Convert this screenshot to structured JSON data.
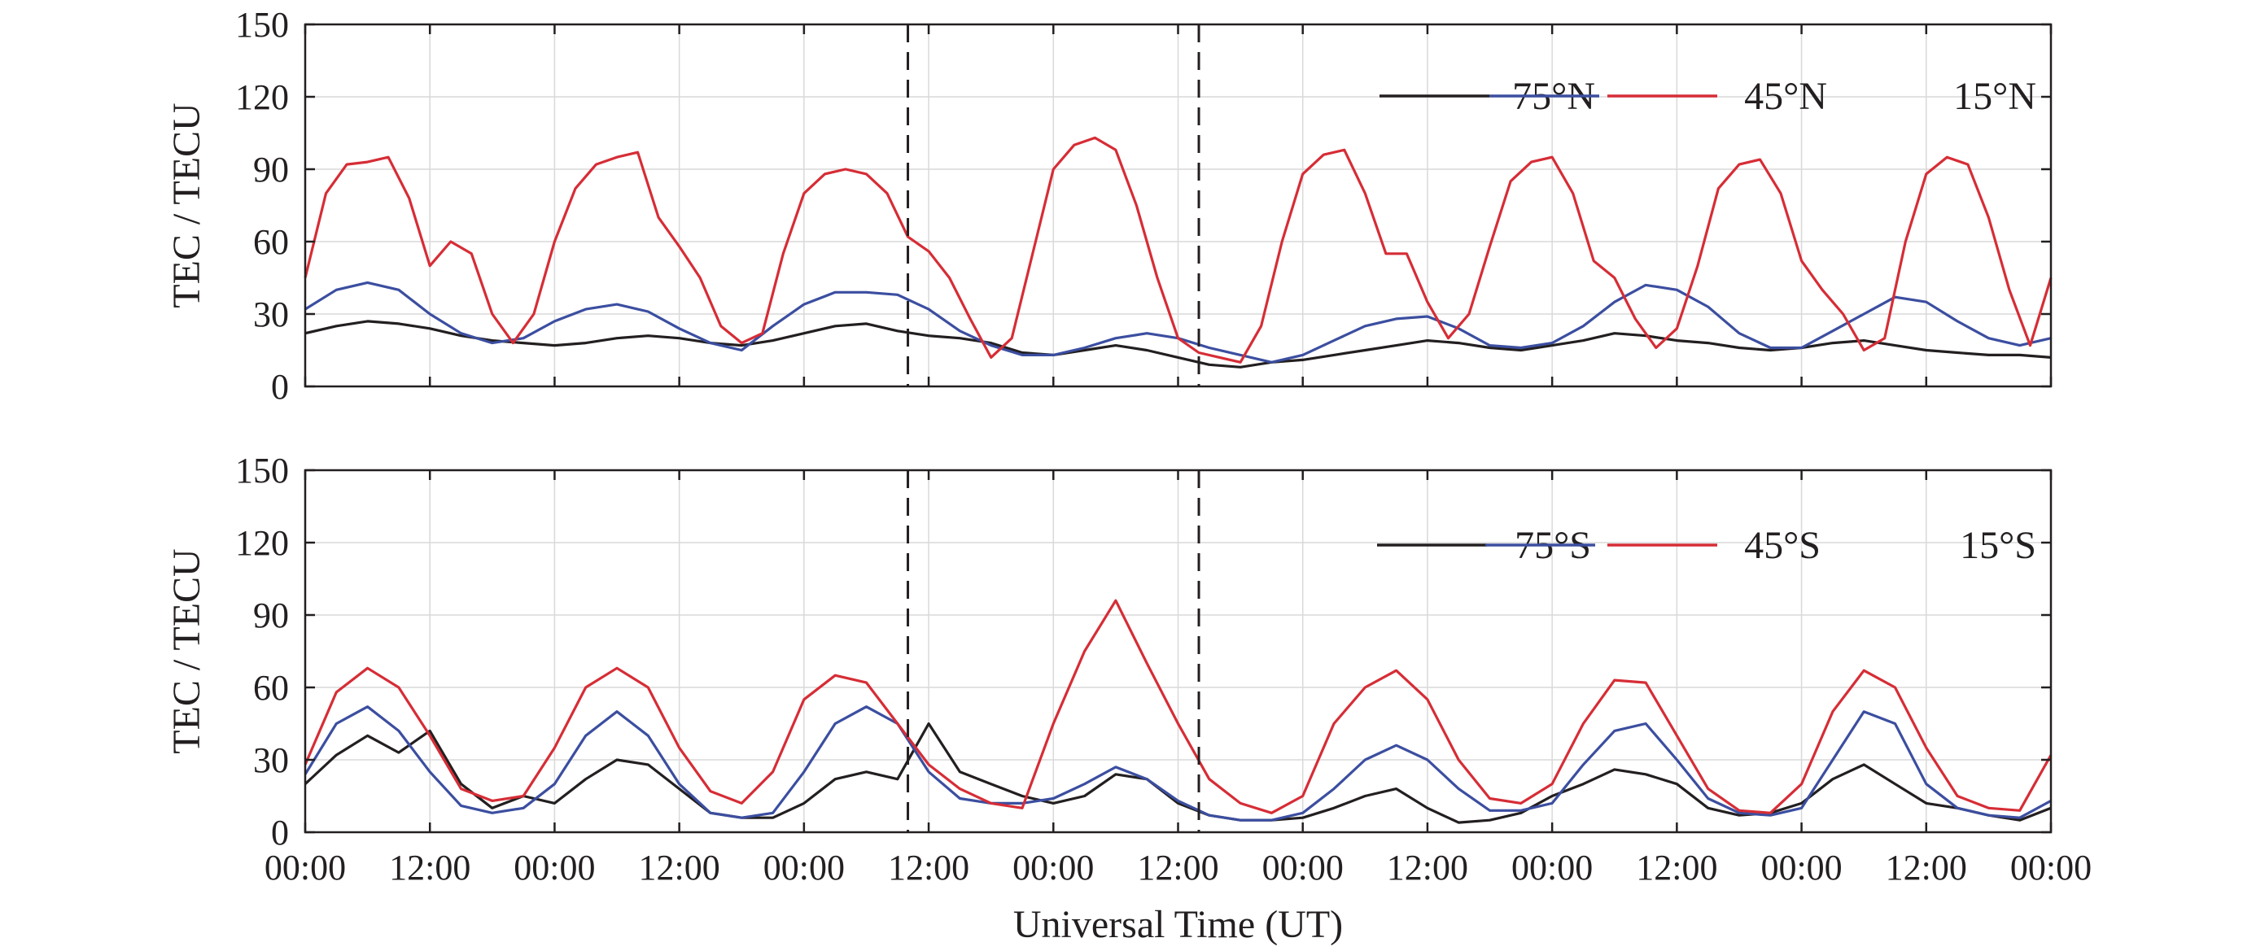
{
  "chart_data": [
    {
      "type": "line",
      "panel": "top",
      "ylabel": "TEC / TECU",
      "xlabel": "",
      "ylim": [
        0,
        150
      ],
      "yticks": [
        0,
        30,
        60,
        90,
        120,
        150
      ],
      "xlim": [
        0,
        168
      ],
      "xticks": [
        0,
        12,
        24,
        36,
        48,
        60,
        72,
        84,
        96,
        108,
        120,
        132,
        144,
        156,
        168
      ],
      "xtick_labels": [
        "",
        "",
        "",
        "",
        "",
        "",
        "",
        "",
        "",
        "",
        "",
        "",
        "",
        "",
        ""
      ],
      "grid": true,
      "legend_position": "top-right",
      "vertical_dashed_lines": [
        58,
        86
      ],
      "series": [
        {
          "name": "75°N",
          "color": "#231f20",
          "x": [
            0,
            3,
            6,
            9,
            12,
            15,
            18,
            21,
            24,
            27,
            30,
            33,
            36,
            39,
            42,
            45,
            48,
            51,
            54,
            57,
            60,
            63,
            66,
            69,
            72,
            75,
            78,
            81,
            84,
            87,
            90,
            93,
            96,
            99,
            102,
            105,
            108,
            111,
            114,
            117,
            120,
            123,
            126,
            129,
            132,
            135,
            138,
            141,
            144,
            147,
            150,
            153,
            156,
            159,
            162,
            165,
            168
          ],
          "y": [
            22,
            25,
            27,
            26,
            24,
            21,
            19,
            18,
            17,
            18,
            20,
            21,
            20,
            18,
            17,
            19,
            22,
            25,
            26,
            23,
            21,
            20,
            18,
            14,
            13,
            15,
            17,
            15,
            12,
            9,
            8,
            10,
            11,
            13,
            15,
            17,
            19,
            18,
            16,
            15,
            17,
            19,
            22,
            21,
            19,
            18,
            16,
            15,
            16,
            18,
            19,
            17,
            15,
            14,
            13,
            13,
            12
          ]
        },
        {
          "name": "45°N",
          "color": "#3b4ea0",
          "x": [
            0,
            3,
            6,
            9,
            12,
            15,
            18,
            21,
            24,
            27,
            30,
            33,
            36,
            39,
            42,
            45,
            48,
            51,
            54,
            57,
            60,
            63,
            66,
            69,
            72,
            75,
            78,
            81,
            84,
            87,
            90,
            93,
            96,
            99,
            102,
            105,
            108,
            111,
            114,
            117,
            120,
            123,
            126,
            129,
            132,
            135,
            138,
            141,
            144,
            147,
            150,
            153,
            156,
            159,
            162,
            165,
            168
          ],
          "y": [
            32,
            40,
            43,
            40,
            30,
            22,
            18,
            20,
            27,
            32,
            34,
            31,
            24,
            18,
            15,
            25,
            34,
            39,
            39,
            38,
            32,
            23,
            17,
            13,
            13,
            16,
            20,
            22,
            20,
            16,
            13,
            10,
            13,
            19,
            25,
            28,
            29,
            24,
            17,
            16,
            18,
            25,
            35,
            42,
            40,
            33,
            22,
            16,
            16,
            23,
            30,
            37,
            35,
            27,
            20,
            17,
            20
          ]
        },
        {
          "name": "15°N",
          "color": "#d62d36",
          "x": [
            0,
            2,
            4,
            6,
            8,
            10,
            12,
            14,
            16,
            18,
            20,
            22,
            24,
            26,
            28,
            30,
            32,
            34,
            36,
            38,
            40,
            42,
            44,
            46,
            48,
            50,
            52,
            54,
            56,
            58,
            60,
            62,
            64,
            66,
            68,
            70,
            72,
            74,
            76,
            78,
            80,
            82,
            84,
            86,
            88,
            90,
            92,
            94,
            96,
            98,
            100,
            102,
            104,
            106,
            108,
            110,
            112,
            114,
            116,
            118,
            120,
            122,
            124,
            126,
            128,
            130,
            132,
            134,
            136,
            138,
            140,
            142,
            144,
            146,
            148,
            150,
            152,
            154,
            156,
            158,
            160,
            162,
            164,
            166,
            168
          ],
          "y": [
            45,
            80,
            92,
            93,
            95,
            78,
            50,
            60,
            55,
            30,
            18,
            30,
            60,
            82,
            92,
            95,
            97,
            70,
            58,
            45,
            25,
            18,
            22,
            55,
            80,
            88,
            90,
            88,
            80,
            62,
            56,
            45,
            28,
            12,
            20,
            55,
            90,
            100,
            103,
            98,
            75,
            45,
            20,
            14,
            12,
            10,
            25,
            60,
            88,
            96,
            98,
            80,
            55,
            55,
            35,
            20,
            30,
            58,
            85,
            93,
            95,
            80,
            52,
            45,
            28,
            16,
            24,
            50,
            82,
            92,
            94,
            80,
            52,
            40,
            30,
            15,
            20,
            60,
            88,
            95,
            92,
            70,
            40,
            17,
            45
          ]
        }
      ]
    },
    {
      "type": "line",
      "panel": "bottom",
      "ylabel": "TEC / TECU",
      "xlabel": "Universal Time (UT)",
      "ylim": [
        0,
        150
      ],
      "yticks": [
        0,
        30,
        60,
        90,
        120,
        150
      ],
      "xlim": [
        0,
        168
      ],
      "xticks": [
        0,
        12,
        24,
        36,
        48,
        60,
        72,
        84,
        96,
        108,
        120,
        132,
        144,
        156,
        168
      ],
      "xtick_labels": [
        "00:00",
        "12:00",
        "00:00",
        "12:00",
        "00:00",
        "12:00",
        "00:00",
        "12:00",
        "00:00",
        "12:00",
        "00:00",
        "12:00",
        "00:00",
        "12:00",
        "00:00"
      ],
      "grid": true,
      "legend_position": "top-right",
      "vertical_dashed_lines": [
        58,
        86
      ],
      "series": [
        {
          "name": "75°S",
          "color": "#231f20",
          "x": [
            0,
            3,
            6,
            9,
            12,
            15,
            18,
            21,
            24,
            27,
            30,
            33,
            36,
            39,
            42,
            45,
            48,
            51,
            54,
            57,
            60,
            63,
            66,
            69,
            72,
            75,
            78,
            81,
            84,
            87,
            90,
            93,
            96,
            99,
            102,
            105,
            108,
            111,
            114,
            117,
            120,
            123,
            126,
            129,
            132,
            135,
            138,
            141,
            144,
            147,
            150,
            153,
            156,
            159,
            162,
            165,
            168
          ],
          "y": [
            20,
            32,
            40,
            33,
            42,
            20,
            10,
            15,
            12,
            22,
            30,
            28,
            18,
            8,
            6,
            6,
            12,
            22,
            25,
            22,
            45,
            25,
            20,
            15,
            12,
            15,
            24,
            22,
            12,
            7,
            5,
            5,
            6,
            10,
            15,
            18,
            10,
            4,
            5,
            8,
            15,
            20,
            26,
            24,
            20,
            10,
            7,
            8,
            12,
            22,
            28,
            20,
            12,
            10,
            7,
            5,
            10
          ]
        },
        {
          "name": "45°S",
          "color": "#3b4ea0",
          "x": [
            0,
            3,
            6,
            9,
            12,
            15,
            18,
            21,
            24,
            27,
            30,
            33,
            36,
            39,
            42,
            45,
            48,
            51,
            54,
            57,
            60,
            63,
            66,
            69,
            72,
            75,
            78,
            81,
            84,
            87,
            90,
            93,
            96,
            99,
            102,
            105,
            108,
            111,
            114,
            117,
            120,
            123,
            126,
            129,
            132,
            135,
            138,
            141,
            144,
            147,
            150,
            153,
            156,
            159,
            162,
            165,
            168
          ],
          "y": [
            24,
            45,
            52,
            42,
            25,
            11,
            8,
            10,
            20,
            40,
            50,
            40,
            20,
            8,
            6,
            8,
            25,
            45,
            52,
            45,
            25,
            14,
            12,
            12,
            14,
            20,
            27,
            22,
            13,
            7,
            5,
            5,
            8,
            18,
            30,
            36,
            30,
            18,
            9,
            9,
            12,
            28,
            42,
            45,
            30,
            14,
            8,
            7,
            10,
            30,
            50,
            45,
            20,
            10,
            7,
            6,
            13
          ]
        },
        {
          "name": "15°S",
          "color": "#d62d36",
          "x": [
            0,
            3,
            6,
            9,
            12,
            15,
            18,
            21,
            24,
            27,
            30,
            33,
            36,
            39,
            42,
            45,
            48,
            51,
            54,
            57,
            60,
            63,
            66,
            69,
            72,
            75,
            78,
            81,
            84,
            87,
            90,
            93,
            96,
            99,
            102,
            105,
            108,
            111,
            114,
            117,
            120,
            123,
            126,
            129,
            132,
            135,
            138,
            141,
            144,
            147,
            150,
            153,
            156,
            159,
            162,
            165,
            168
          ],
          "y": [
            28,
            58,
            68,
            60,
            40,
            18,
            13,
            15,
            35,
            60,
            68,
            60,
            35,
            17,
            12,
            25,
            55,
            65,
            62,
            45,
            28,
            18,
            12,
            10,
            45,
            75,
            96,
            70,
            45,
            22,
            12,
            8,
            15,
            45,
            60,
            67,
            55,
            30,
            14,
            12,
            20,
            45,
            63,
            62,
            40,
            18,
            9,
            8,
            20,
            50,
            67,
            60,
            35,
            15,
            10,
            9,
            32
          ]
        }
      ]
    }
  ]
}
